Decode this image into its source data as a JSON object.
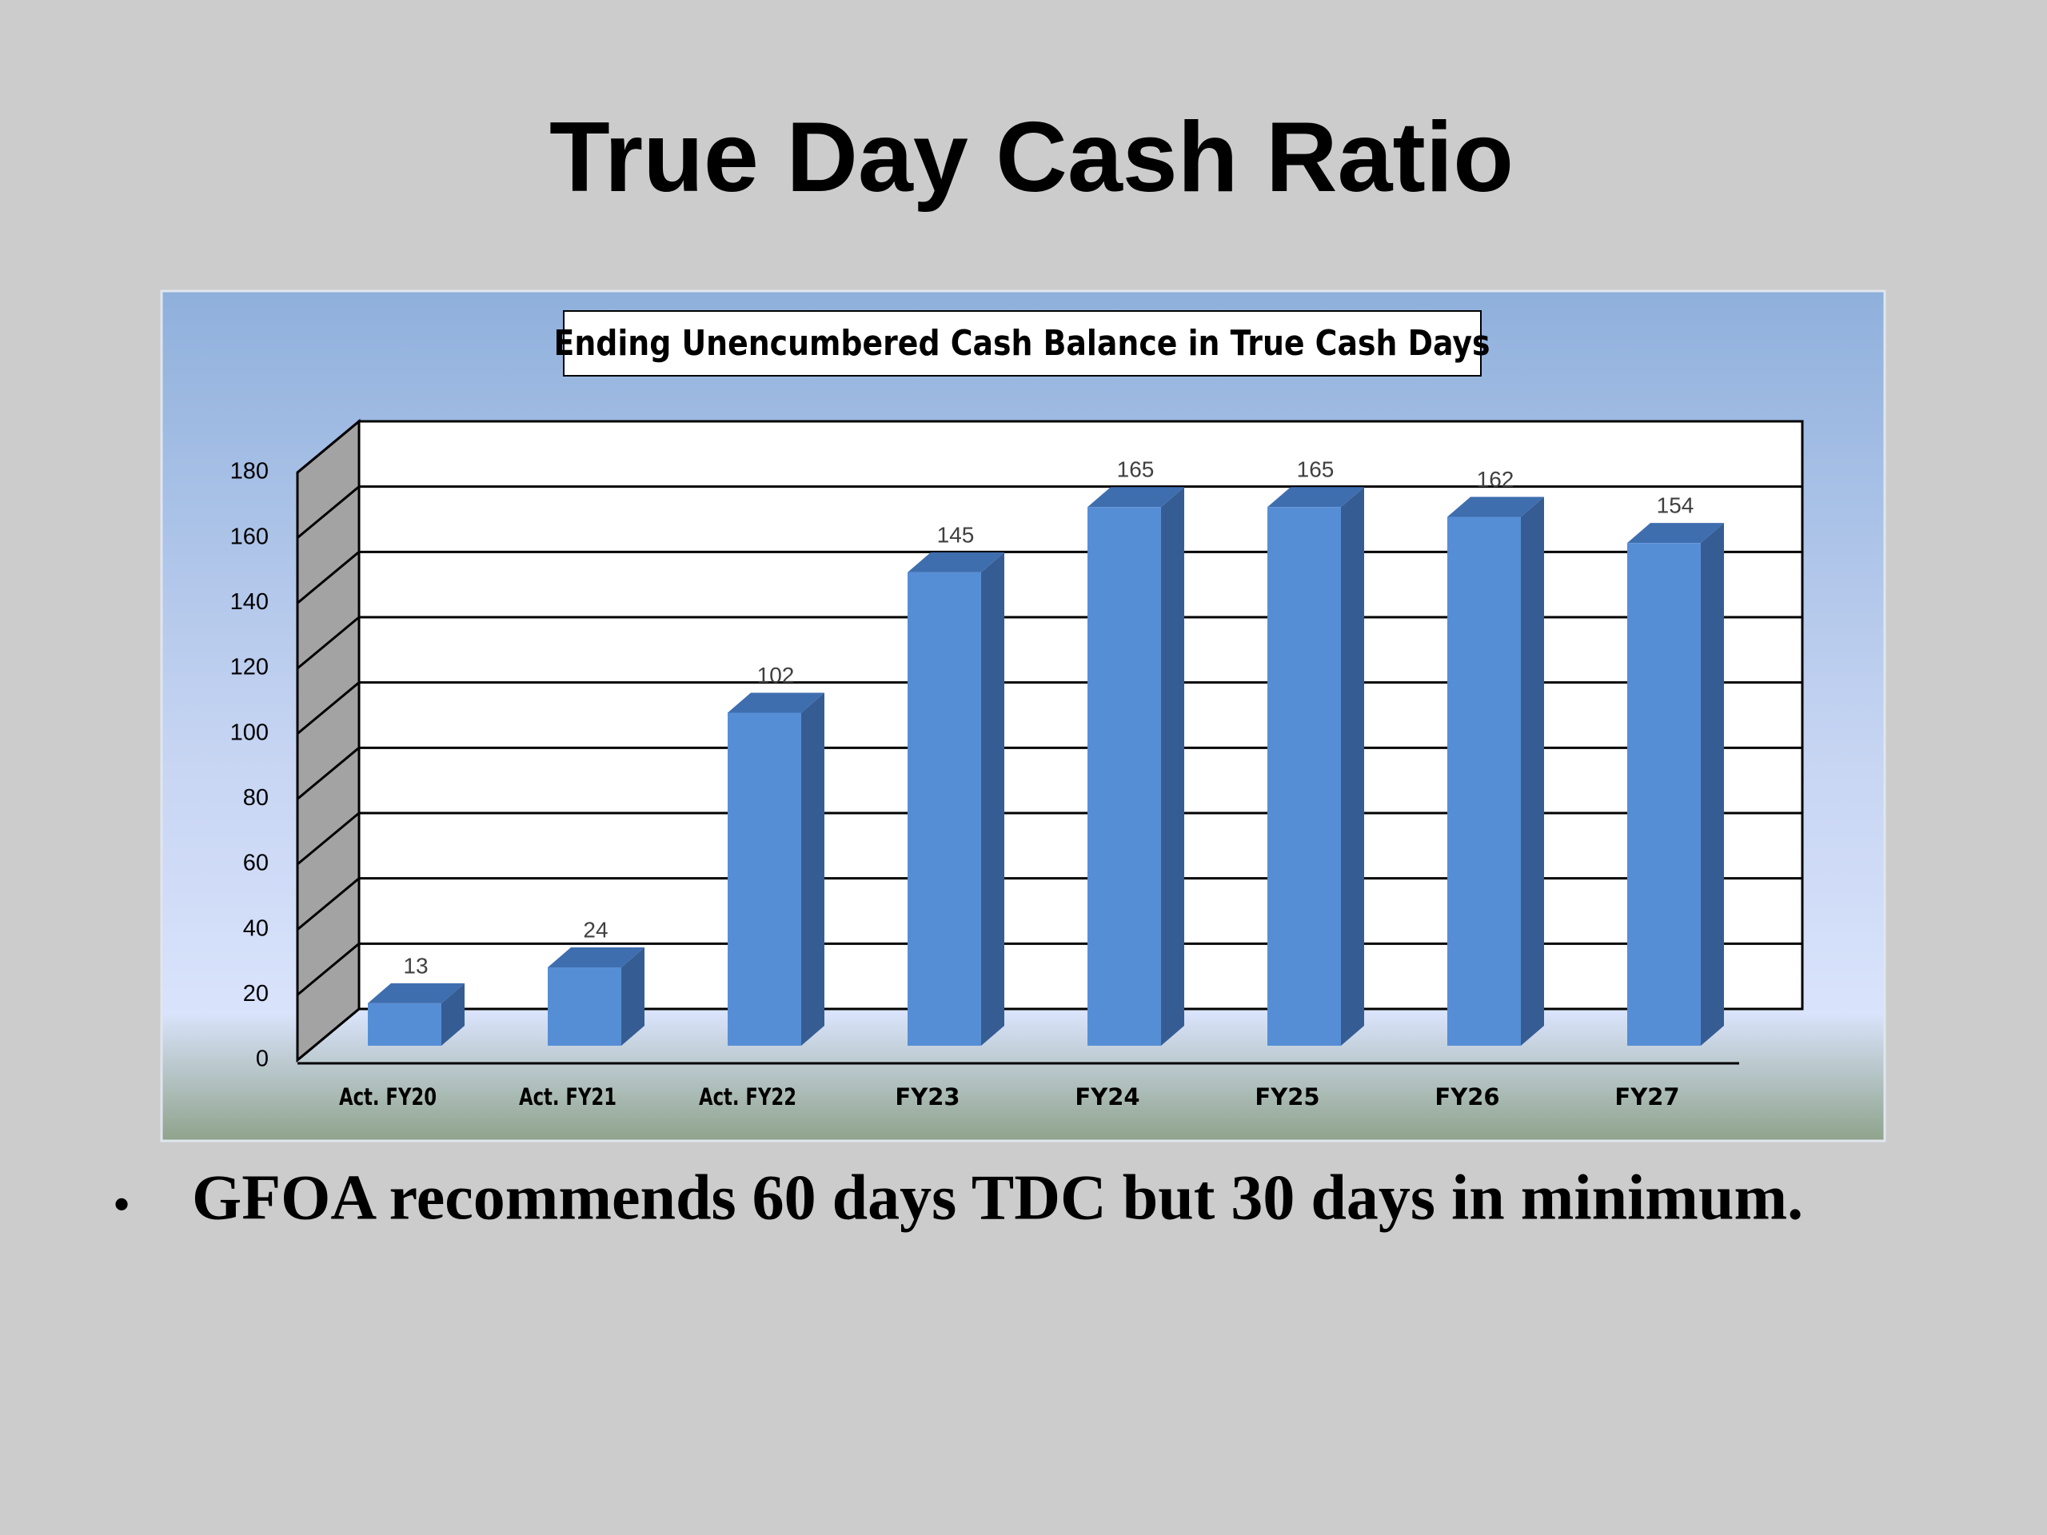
{
  "title": "True Day Cash Ratio",
  "chart_data": {
    "type": "bar3d",
    "title": "Ending Unencumbered Cash Balance in True Cash Days",
    "categories": [
      "Act. FY20",
      "Act. FY21",
      "Act.  FY22",
      "FY23",
      "FY24",
      "FY25",
      "FY26",
      "FY27"
    ],
    "values": [
      13,
      24,
      102,
      145,
      165,
      165,
      162,
      154
    ],
    "color": "#568ed6",
    "ylim": [
      0,
      180
    ],
    "yticks": [
      0,
      20,
      40,
      60,
      80,
      100,
      120,
      140,
      160,
      180
    ],
    "grid": true
  },
  "bullet": "GFOA recommends 60 days TDC but 30 days in minimum."
}
